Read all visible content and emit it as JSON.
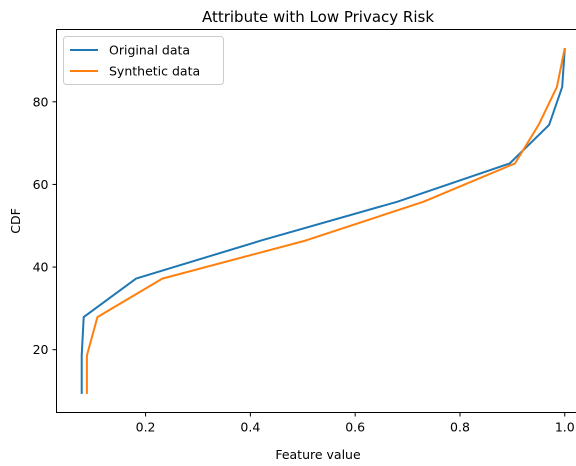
{
  "chart_data": {
    "type": "line",
    "title": "Attribute with Low Privacy Risk",
    "xlabel": "Feature value",
    "ylabel": "CDF",
    "xlim": [
      0.03,
      1.03
    ],
    "ylim": [
      4.8,
      97.5
    ],
    "xticks": [
      0.2,
      0.4,
      0.6,
      0.8,
      1.0
    ],
    "xtick_labels": [
      "0.2",
      "0.4",
      "0.6",
      "0.8",
      "1.0"
    ],
    "yticks": [
      20,
      40,
      60,
      80
    ],
    "ytick_labels": [
      "20",
      "40",
      "60",
      "80"
    ],
    "grid": false,
    "legend_position": "top-left",
    "series": [
      {
        "name": "Original data",
        "color": "#1f77b4",
        "points": [
          [
            0.078,
            9.3
          ],
          [
            0.078,
            18.6
          ],
          [
            0.082,
            27.9
          ],
          [
            0.182,
            37.2
          ],
          [
            0.42,
            46.4
          ],
          [
            0.68,
            55.8
          ],
          [
            0.895,
            65.1
          ],
          [
            0.97,
            74.4
          ],
          [
            0.995,
            83.6
          ],
          [
            1.0,
            93.0
          ]
        ]
      },
      {
        "name": "Synthetic data",
        "color": "#ff7f0e",
        "points": [
          [
            0.088,
            9.3
          ],
          [
            0.088,
            18.6
          ],
          [
            0.108,
            27.9
          ],
          [
            0.232,
            37.2
          ],
          [
            0.505,
            46.4
          ],
          [
            0.73,
            55.8
          ],
          [
            0.905,
            65.1
          ],
          [
            0.95,
            74.4
          ],
          [
            0.985,
            83.6
          ],
          [
            1.0,
            93.0
          ]
        ]
      }
    ]
  }
}
